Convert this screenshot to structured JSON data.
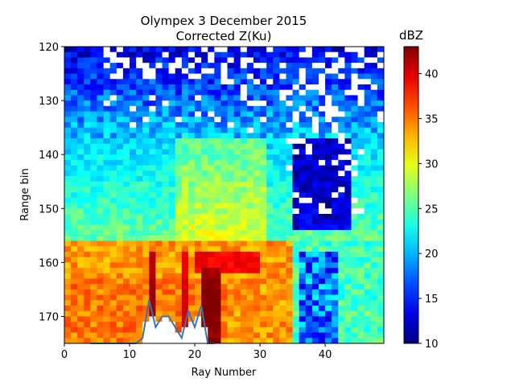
{
  "chart_data": {
    "type": "heatmap",
    "title": "Olympex 3 December 2015",
    "subtitle": "Corrected Z(Ku)",
    "xlabel": "Ray Number",
    "ylabel": "Range bin",
    "xlim": [
      0,
      49
    ],
    "ylim": [
      175,
      120
    ],
    "x_ticks": [
      0,
      10,
      20,
      30,
      40
    ],
    "y_ticks": [
      120,
      130,
      140,
      150,
      160,
      170
    ],
    "colorbar": {
      "label": "dBZ",
      "range": [
        10,
        43
      ],
      "ticks": [
        10,
        15,
        20,
        25,
        30,
        35,
        40
      ],
      "colormap": "jet"
    },
    "nan_color": "#ffffff",
    "surface_line": {
      "color": "#3a75b0",
      "x": [
        4,
        11,
        12,
        13,
        14,
        15,
        16,
        17,
        18,
        19,
        20,
        21,
        22,
        23
      ],
      "y": [
        175,
        175,
        174,
        167,
        172,
        170,
        170,
        172,
        174,
        169,
        172,
        168,
        175,
        175
      ]
    }
  }
}
